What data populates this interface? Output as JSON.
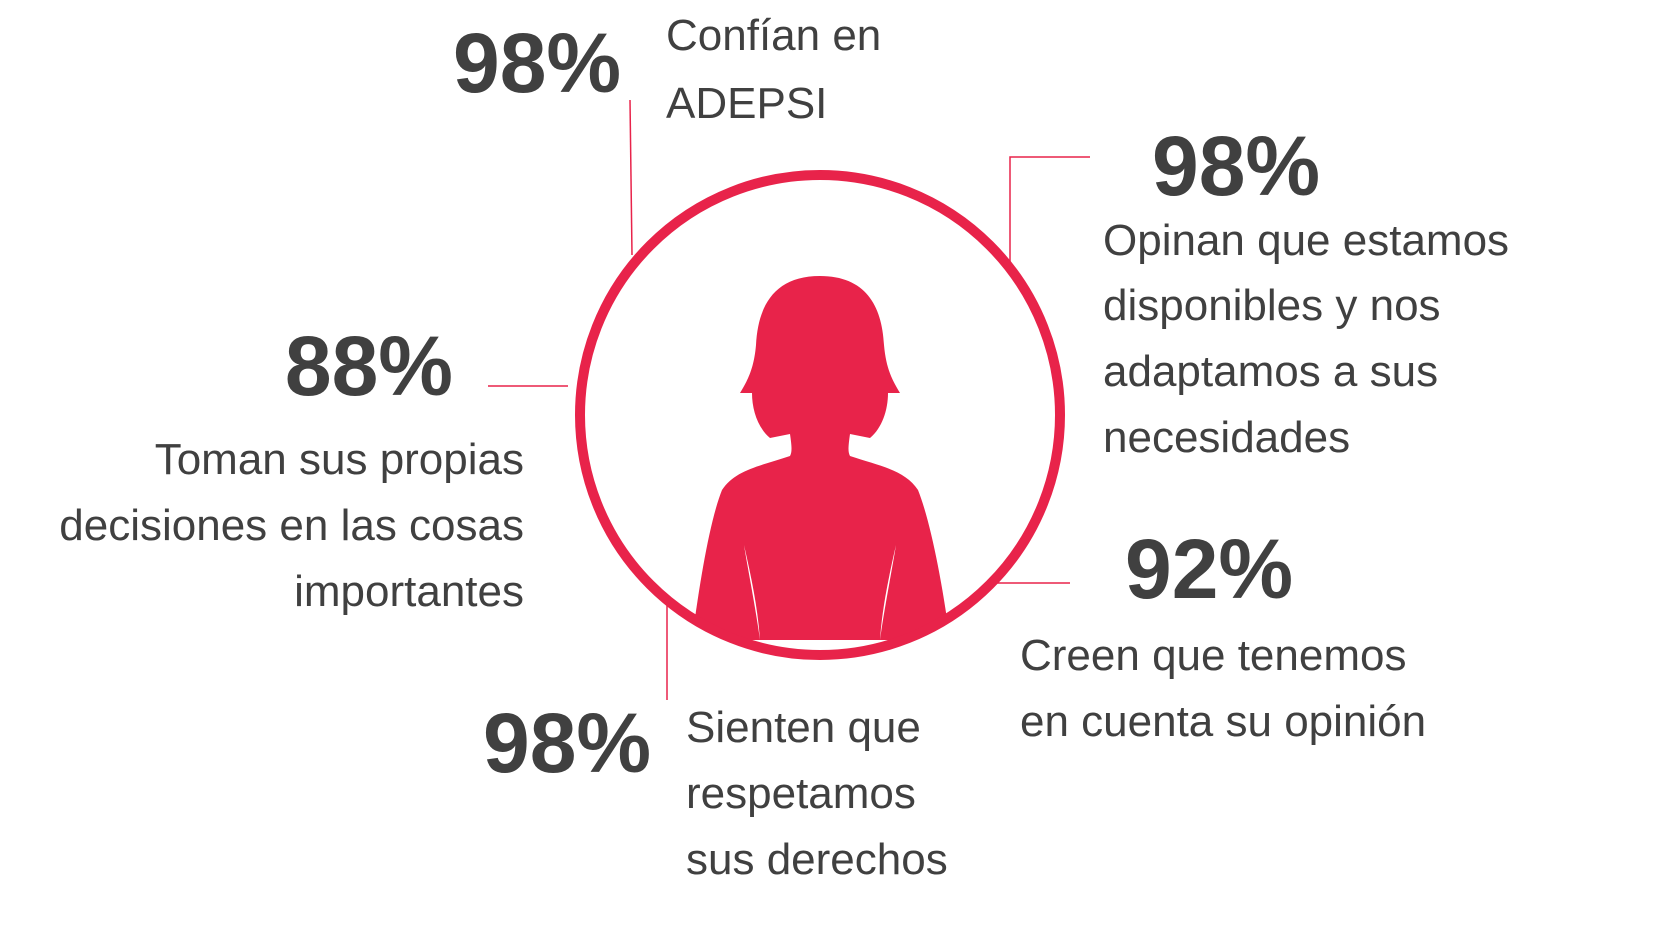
{
  "items": [
    {
      "percent": "98%",
      "lines": [
        "Confían en",
        "ADEPSI"
      ]
    },
    {
      "percent": "98%",
      "lines": [
        "Opinan que estamos",
        "disponibles y nos",
        "adaptamos a sus",
        "necesidades"
      ]
    },
    {
      "percent": "88%",
      "lines": [
        "Toman sus propias",
        "decisiones en las cosas",
        "importantes"
      ]
    },
    {
      "percent": "92%",
      "lines": [
        "Creen que tenemos",
        "en cuenta su opinión"
      ]
    },
    {
      "percent": "98%",
      "lines": [
        "Sienten que",
        "respetamos",
        "sus derechos"
      ]
    }
  ]
}
